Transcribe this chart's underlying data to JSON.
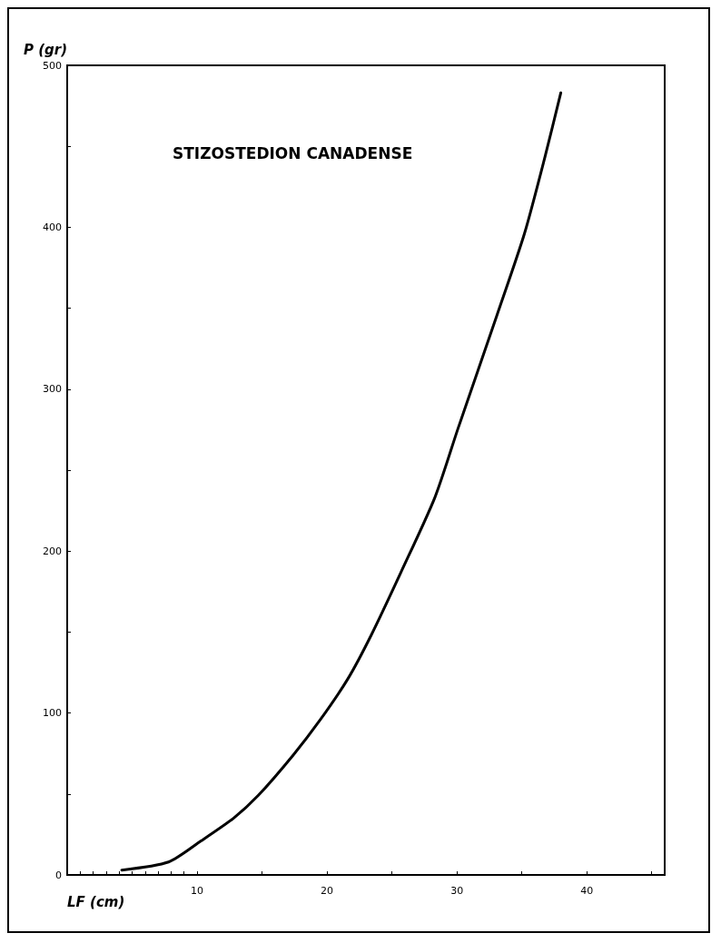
{
  "chart_data": {
    "type": "line",
    "xlabel": "LF (cm)",
    "ylabel": "P (gr)",
    "annotations": [
      "STIZOSTEDION CANADENSE"
    ],
    "series": [
      {
        "color": "#000000",
        "x": [
          4.2,
          7.8,
          10.3,
          12.8,
          14.7,
          17.4,
          19.5,
          21.6,
          23.4,
          25.7,
          28.3,
          30.1,
          33.1,
          35.2,
          36.8,
          38.0
        ],
        "values": [
          3,
          8,
          21,
          35,
          49,
          74,
          96,
          121,
          148,
          187,
          233,
          276,
          346,
          396,
          444,
          483
        ]
      }
    ],
    "xlim": [
      0,
      46
    ],
    "xticks": [
      {
        "value": 1,
        "label": null
      },
      {
        "value": 2,
        "label": null
      },
      {
        "value": 3,
        "label": null
      },
      {
        "value": 4,
        "label": null
      },
      {
        "value": 5,
        "label": null
      },
      {
        "value": 6,
        "label": null
      },
      {
        "value": 7,
        "label": null
      },
      {
        "value": 8,
        "label": null
      },
      {
        "value": 9,
        "label": null
      },
      10,
      {
        "value": 15,
        "label": null
      },
      20,
      {
        "value": 25,
        "label": null
      },
      30,
      {
        "value": 35,
        "label": null
      },
      40,
      {
        "value": 45,
        "label": null
      }
    ],
    "ylim": [
      0,
      500
    ],
    "yticks": [
      0,
      {
        "value": 50,
        "label": null
      },
      100,
      {
        "value": 150,
        "label": null
      },
      200,
      {
        "value": 250,
        "label": null
      },
      300,
      {
        "value": 350,
        "label": null
      },
      400,
      {
        "value": 450,
        "label": null
      },
      500
    ],
    "grid": false,
    "marker": "none",
    "line_style": "solid"
  }
}
